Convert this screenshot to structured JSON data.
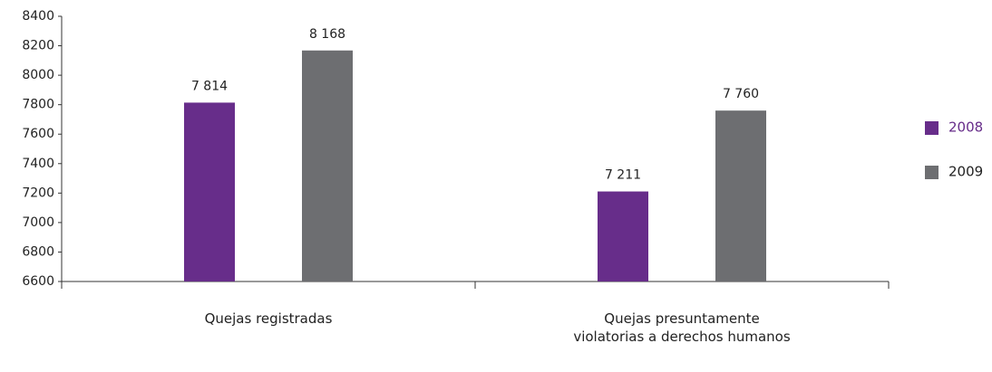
{
  "chart_data": {
    "type": "bar",
    "categories": [
      "Quejas registradas",
      "Quejas presuntamente violatorias a derechos humanos"
    ],
    "series": [
      {
        "name": "2008",
        "color": "#672d8a",
        "values": [
          7814,
          7211
        ],
        "value_labels": [
          "7 814",
          "7 211"
        ]
      },
      {
        "name": "2009",
        "color": "#6d6e71",
        "values": [
          8168,
          7760
        ],
        "value_labels": [
          "8 168",
          "7 760"
        ]
      }
    ],
    "ylim": [
      6600,
      8400
    ],
    "yticks": [
      6600,
      6800,
      7000,
      7200,
      7400,
      7600,
      7800,
      8000,
      8200,
      8400
    ],
    "legend": "right"
  }
}
